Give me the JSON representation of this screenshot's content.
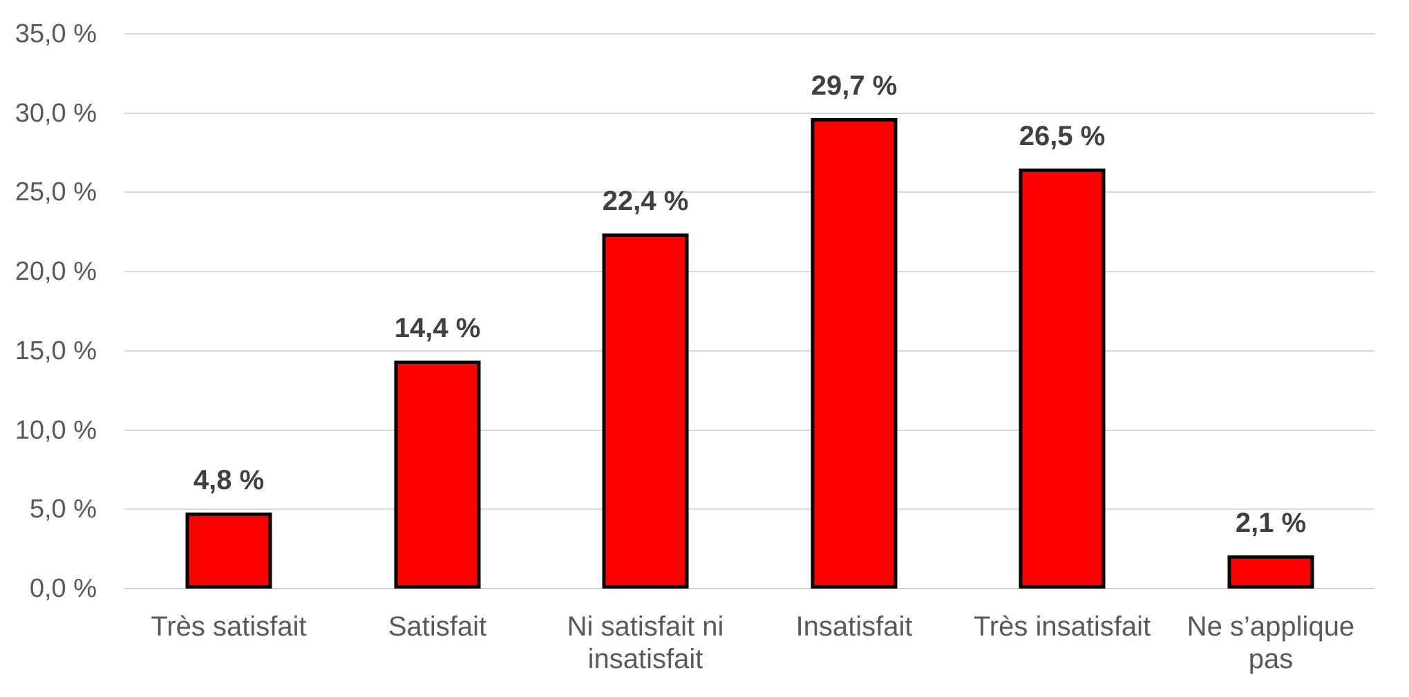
{
  "chart_data": {
    "type": "bar",
    "title": "",
    "xlabel": "",
    "ylabel": "",
    "categories": [
      "Très satisfait",
      "Satisfait",
      "Ni satisfait ni insatisfait",
      "Insatisfait",
      "Très insatisfait",
      "Ne s’applique pas"
    ],
    "values": [
      4.8,
      14.4,
      22.4,
      29.7,
      26.5,
      2.1
    ],
    "value_labels": [
      "4,8 %",
      "14,4 %",
      "22,4 %",
      "29,7 %",
      "26,5 %",
      "2,1 %"
    ],
    "ylim": [
      0,
      35
    ],
    "ytick_values": [
      35,
      30,
      25,
      20,
      15,
      10,
      5,
      0
    ],
    "ytick_labels": [
      "35,0 %",
      "30,0 %",
      "25,0 %",
      "20,0 %",
      "15,0 %",
      "10,0 %",
      "5,0 %",
      "0,0 %"
    ],
    "grid": true,
    "legend_position": "none",
    "colors": {
      "bar_fill": "#FF0000",
      "bar_border": "#000000",
      "gridline": "#D9D9D9",
      "axis_line": "#D2D2D2",
      "axis_text": "#595959",
      "data_label": "#404040",
      "background": "#FFFFFF"
    }
  }
}
